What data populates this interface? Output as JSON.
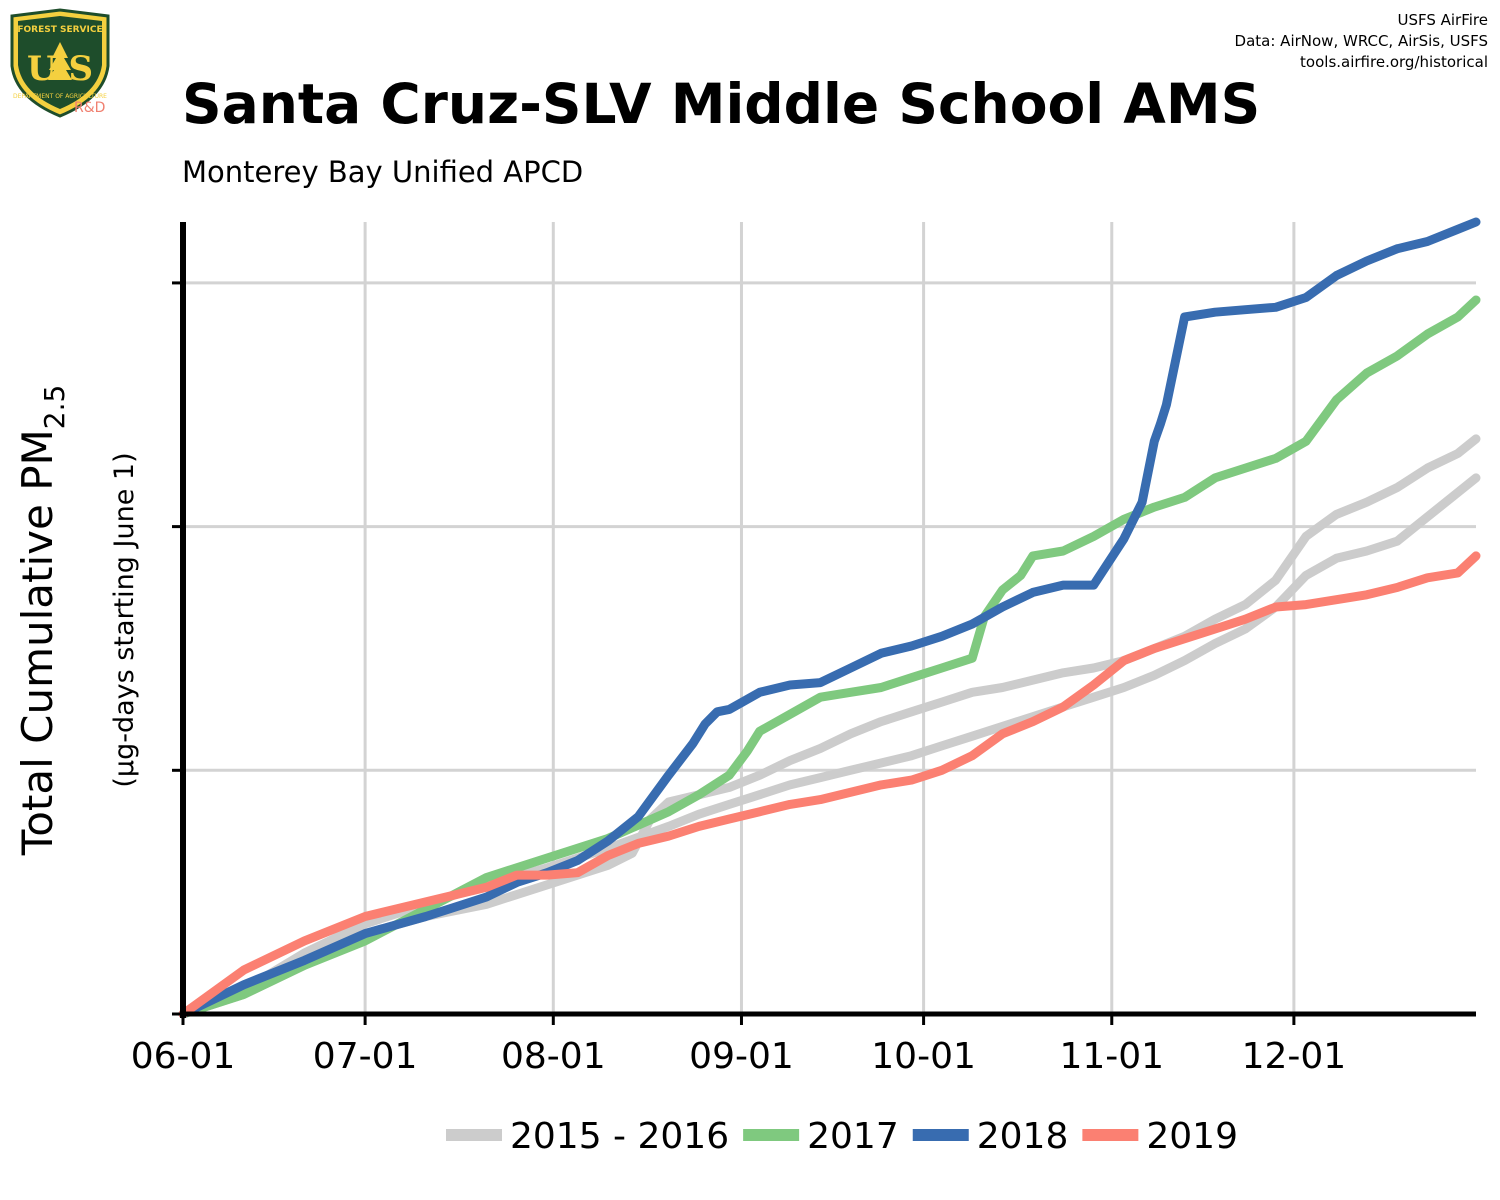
{
  "header": {
    "title": "Santa Cruz-SLV Middle School AMS",
    "subtitle": "Monterey Bay Unified APCD",
    "credit_line1": "USFS AirFire",
    "credit_line2": "Data: AirNow, WRCC, AirSis, USFS",
    "credit_line3": "tools.airfire.org/historical"
  },
  "logo": {
    "top_text": "FOREST SERVICE",
    "letters": "U S",
    "bottom_text": "DEPARTMENT OF AGRICULTURE",
    "tag": "R&D"
  },
  "chart_data": {
    "type": "line",
    "title": "Santa Cruz-SLV Middle School AMS",
    "subtitle": "Monterey Bay Unified APCD",
    "ylabel_main": "Total Cumulative PM",
    "ylabel_sub": "2.5",
    "ylabel_units": "(µg-days starting June 1)",
    "xlabel": "",
    "x_unit": "days since June 1",
    "x_ticks": [
      {
        "label": "06-01",
        "x": 0
      },
      {
        "label": "07-01",
        "x": 30
      },
      {
        "label": "08-01",
        "x": 61
      },
      {
        "label": "09-01",
        "x": 92
      },
      {
        "label": "10-01",
        "x": 122
      },
      {
        "label": "11-01",
        "x": 153
      },
      {
        "label": "12-01",
        "x": 183
      }
    ],
    "xlim": [
      0,
      213
    ],
    "ylim": [
      0,
      3.25
    ],
    "y_gridlines": [
      1,
      2,
      3
    ],
    "grid": true,
    "legend_position": "bottom",
    "series": [
      {
        "name": "2015 - 2016",
        "color": "#cccccc",
        "x": [
          0,
          10,
          20,
          30,
          40,
          50,
          60,
          70,
          74,
          77,
          80,
          85,
          90,
          95,
          100,
          105,
          110,
          115,
          120,
          125,
          130,
          135,
          140,
          145,
          150,
          155,
          160,
          165,
          170,
          175,
          180,
          185,
          190,
          195,
          200,
          205,
          210,
          213
        ],
        "y": [
          0,
          0.08,
          0.2,
          0.33,
          0.4,
          0.45,
          0.53,
          0.61,
          0.66,
          0.8,
          0.87,
          0.9,
          0.93,
          0.98,
          1.04,
          1.09,
          1.15,
          1.2,
          1.24,
          1.28,
          1.32,
          1.34,
          1.37,
          1.4,
          1.42,
          1.45,
          1.5,
          1.55,
          1.62,
          1.68,
          1.78,
          1.96,
          2.05,
          2.1,
          2.16,
          2.24,
          2.3,
          2.36
        ]
      },
      {
        "name": "2015 - 2016",
        "color": "#cccccc",
        "x": [
          0,
          10,
          20,
          30,
          40,
          50,
          60,
          70,
          80,
          85,
          90,
          95,
          100,
          105,
          110,
          115,
          120,
          125,
          130,
          135,
          140,
          145,
          150,
          155,
          160,
          165,
          170,
          175,
          180,
          185,
          190,
          195,
          200,
          205,
          210,
          213
        ],
        "y": [
          0,
          0.1,
          0.25,
          0.37,
          0.45,
          0.53,
          0.6,
          0.68,
          0.77,
          0.82,
          0.86,
          0.9,
          0.94,
          0.97,
          1.0,
          1.03,
          1.06,
          1.1,
          1.14,
          1.18,
          1.22,
          1.26,
          1.3,
          1.34,
          1.39,
          1.45,
          1.52,
          1.58,
          1.67,
          1.8,
          1.87,
          1.9,
          1.94,
          2.04,
          2.14,
          2.2
        ]
      },
      {
        "name": "2017",
        "color": "#7fc97f",
        "x": [
          0,
          10,
          20,
          30,
          40,
          50,
          60,
          70,
          80,
          85,
          90,
          93,
          95,
          100,
          105,
          110,
          115,
          120,
          125,
          130,
          132,
          135,
          138,
          140,
          145,
          150,
          155,
          160,
          165,
          170,
          175,
          180,
          185,
          190,
          195,
          200,
          205,
          210,
          213
        ],
        "y": [
          0,
          0.08,
          0.2,
          0.3,
          0.43,
          0.56,
          0.64,
          0.72,
          0.83,
          0.9,
          0.98,
          1.08,
          1.16,
          1.23,
          1.3,
          1.32,
          1.34,
          1.38,
          1.42,
          1.46,
          1.63,
          1.74,
          1.8,
          1.88,
          1.9,
          1.96,
          2.03,
          2.08,
          2.12,
          2.2,
          2.24,
          2.28,
          2.35,
          2.52,
          2.63,
          2.7,
          2.79,
          2.86,
          2.93
        ]
      },
      {
        "name": "2018",
        "color": "#386cb0",
        "x": [
          0,
          10,
          20,
          30,
          40,
          50,
          55,
          60,
          65,
          70,
          75,
          80,
          84,
          86,
          88,
          90,
          95,
          100,
          105,
          110,
          115,
          120,
          125,
          130,
          135,
          140,
          145,
          150,
          155,
          158,
          160,
          161,
          162,
          165,
          170,
          175,
          180,
          185,
          190,
          195,
          200,
          205,
          210,
          213
        ],
        "y": [
          0,
          0.12,
          0.22,
          0.33,
          0.4,
          0.48,
          0.54,
          0.58,
          0.63,
          0.71,
          0.81,
          0.98,
          1.11,
          1.19,
          1.24,
          1.25,
          1.32,
          1.35,
          1.36,
          1.42,
          1.48,
          1.51,
          1.55,
          1.6,
          1.67,
          1.73,
          1.76,
          1.76,
          1.95,
          2.1,
          2.35,
          2.42,
          2.5,
          2.86,
          2.88,
          2.89,
          2.9,
          2.94,
          3.03,
          3.09,
          3.14,
          3.17,
          3.22,
          3.25
        ]
      },
      {
        "name": "2019",
        "color": "#fb8072",
        "x": [
          0,
          10,
          20,
          30,
          40,
          50,
          55,
          60,
          65,
          70,
          75,
          80,
          85,
          90,
          95,
          100,
          105,
          110,
          115,
          120,
          125,
          130,
          135,
          140,
          145,
          150,
          155,
          160,
          165,
          170,
          175,
          180,
          185,
          190,
          195,
          200,
          205,
          210,
          213
        ],
        "y": [
          0,
          0.18,
          0.3,
          0.4,
          0.46,
          0.52,
          0.57,
          0.57,
          0.58,
          0.65,
          0.7,
          0.73,
          0.77,
          0.8,
          0.83,
          0.86,
          0.88,
          0.91,
          0.94,
          0.96,
          1.0,
          1.06,
          1.15,
          1.2,
          1.26,
          1.35,
          1.45,
          1.5,
          1.54,
          1.58,
          1.62,
          1.67,
          1.68,
          1.7,
          1.72,
          1.75,
          1.79,
          1.81,
          1.88
        ]
      }
    ],
    "legend": [
      {
        "label": "2015 - 2016",
        "color": "#cccccc"
      },
      {
        "label": "2017",
        "color": "#7fc97f"
      },
      {
        "label": "2018",
        "color": "#386cb0"
      },
      {
        "label": "2019",
        "color": "#fb8072"
      }
    ]
  }
}
